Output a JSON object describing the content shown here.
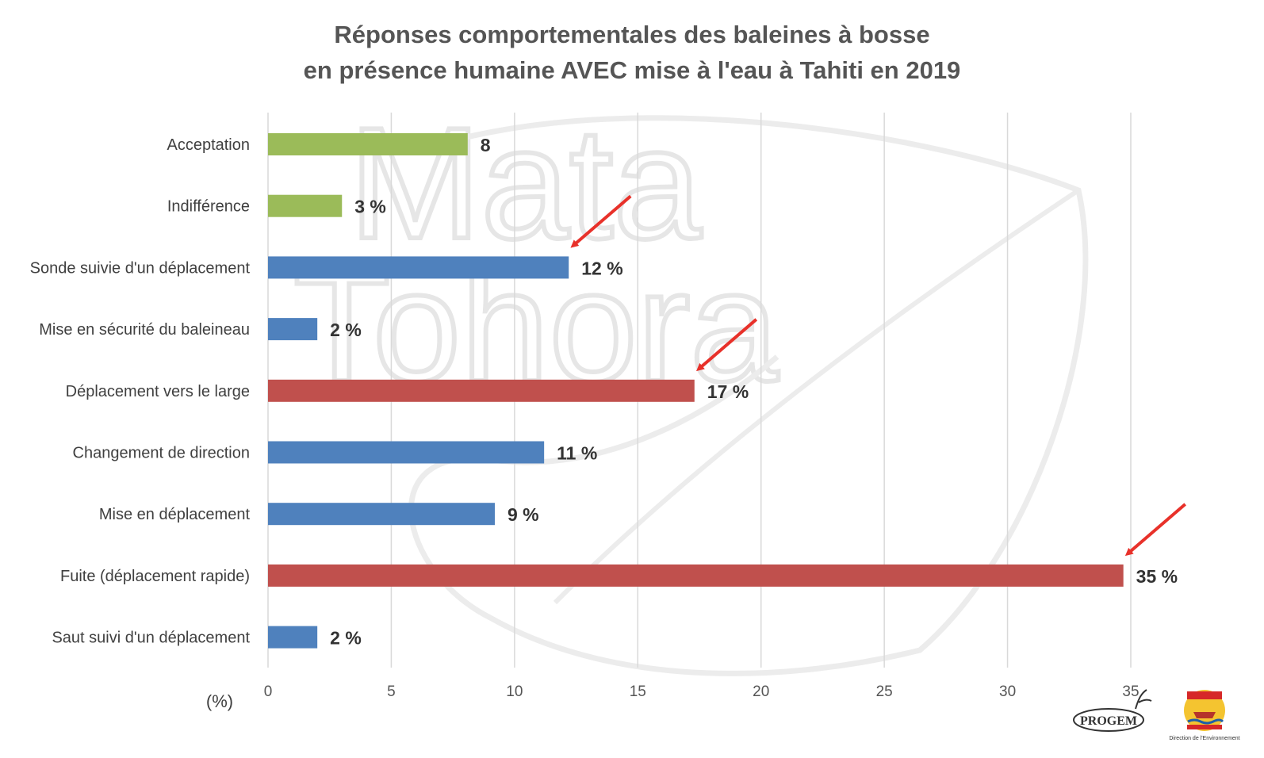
{
  "chart_data": {
    "type": "bar",
    "orientation": "horizontal",
    "title": "Réponses comportementales des baleines à bosse",
    "subtitle": "en présence humaine AVEC mise à l'eau à Tahiti en 2019",
    "xlabel": "(%)",
    "xlim": [
      0,
      35
    ],
    "xticks": [
      0,
      5,
      10,
      15,
      20,
      25,
      30,
      35
    ],
    "grid": true,
    "categories": [
      "Acceptation",
      "Indifférence",
      "Sonde suivie d'un déplacement",
      "Mise en sécurité du baleineau",
      "Déplacement vers le large",
      "Changement de direction",
      "Mise en déplacement",
      "Fuite (déplacement rapide)",
      "Saut suivi d'un déplacement"
    ],
    "values": [
      8.1,
      3,
      12.2,
      2,
      17.3,
      11.2,
      9.2,
      34.7,
      2
    ],
    "data_labels": [
      "8",
      "3 %",
      "12 %",
      "2 %",
      "17 %",
      "11 %",
      "9 %",
      "35 %",
      "2 %"
    ],
    "bar_colors": [
      "#9bbb59",
      "#9bbb59",
      "#4f81bd",
      "#4f81bd",
      "#c0504d",
      "#4f81bd",
      "#4f81bd",
      "#c0504d",
      "#4f81bd"
    ],
    "arrows_point_to": [
      "Sonde suivie d'un déplacement",
      "Déplacement vers le large",
      "Fuite (déplacement rapide)"
    ],
    "arrow_color": "#e8312a"
  },
  "watermark": {
    "line1": "Mata",
    "line2": "Tohora"
  },
  "logos": {
    "progem": "PROGEM",
    "direction": "Direction de l'Environnement"
  }
}
